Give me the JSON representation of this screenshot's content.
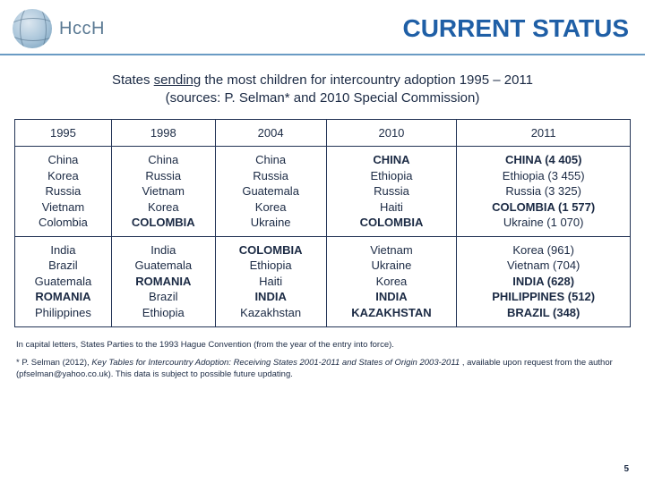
{
  "header": {
    "logo_text": "HccH",
    "title": "CURRENT STATUS",
    "title_color": "#1f5fa6",
    "rule_color": "#6a9bc4"
  },
  "subtitle": {
    "prefix": "States ",
    "underlined": "sending",
    "rest_line1": " the most children for intercountry adoption 1995 – 2011",
    "line2": "(sources: P. Selman* and 2010 Special Commission)"
  },
  "table": {
    "columns": [
      {
        "label": "1995",
        "class": "col-1995"
      },
      {
        "label": "1998",
        "class": "col-1998"
      },
      {
        "label": "2004",
        "class": "col-2004"
      },
      {
        "label": "2010",
        "class": "col-2010"
      },
      {
        "label": "2011",
        "class": "col-2011"
      }
    ],
    "rows": [
      [
        [
          {
            "t": "China"
          },
          {
            "t": "Korea"
          },
          {
            "t": "Russia"
          },
          {
            "t": "Vietnam"
          },
          {
            "t": "Colombia"
          }
        ],
        [
          {
            "t": "China"
          },
          {
            "t": "Russia"
          },
          {
            "t": "Vietnam"
          },
          {
            "t": "Korea"
          },
          {
            "t": "COLOMBIA",
            "b": true
          }
        ],
        [
          {
            "t": "China"
          },
          {
            "t": "Russia"
          },
          {
            "t": "Guatemala"
          },
          {
            "t": "Korea"
          },
          {
            "t": "Ukraine"
          }
        ],
        [
          {
            "t": "CHINA",
            "b": true
          },
          {
            "t": "Ethiopia"
          },
          {
            "t": "Russia"
          },
          {
            "t": "Haiti"
          },
          {
            "t": "COLOMBIA",
            "b": true
          }
        ],
        [
          {
            "t": "CHINA (4 405)",
            "b": true
          },
          {
            "t": "Ethiopia (3 455)"
          },
          {
            "t": "Russia (3 325)"
          },
          {
            "t": "COLOMBIA (1 577)",
            "b": true
          },
          {
            "t": "Ukraine (1 070)"
          }
        ]
      ],
      [
        [
          {
            "t": "India"
          },
          {
            "t": "Brazil"
          },
          {
            "t": "Guatemala"
          },
          {
            "t": "ROMANIA",
            "b": true
          },
          {
            "t": "Philippines"
          }
        ],
        [
          {
            "t": "India"
          },
          {
            "t": "Guatemala"
          },
          {
            "t": "ROMANIA",
            "b": true
          },
          {
            "t": "Brazil"
          },
          {
            "t": "Ethiopia"
          }
        ],
        [
          {
            "t": "COLOMBIA",
            "b": true
          },
          {
            "t": "Ethiopia"
          },
          {
            "t": "Haiti"
          },
          {
            "t": "INDIA",
            "b": true
          },
          {
            "t": "Kazakhstan"
          }
        ],
        [
          {
            "t": "Vietnam"
          },
          {
            "t": "Ukraine"
          },
          {
            "t": "Korea"
          },
          {
            "t": "INDIA",
            "b": true
          },
          {
            "t": "KAZAKHSTAN",
            "b": true
          }
        ],
        [
          {
            "t": "Korea (961)"
          },
          {
            "t": "Vietnam (704)"
          },
          {
            "t": "INDIA (628)",
            "b": true
          },
          {
            "t": "PHILIPPINES (512)",
            "b": true
          },
          {
            "t": "BRAZIL (348)",
            "b": true
          }
        ]
      ]
    ],
    "border_color": "#223355",
    "text_color": "#1b2a44",
    "cell_fontsize": 13
  },
  "footnotes": {
    "note1": "In capital letters, States Parties to the 1993 Hague Convention (from the year of the entry into force).",
    "note2_prefix": "* P. Selman (2012), ",
    "note2_italic": "Key Tables for Intercountry Adoption: Receiving States 2001-2011 and States of Origin 2003-2011",
    "note2_suffix": " , available upon request from the author (pfselman@yahoo.co.uk). This data is subject to possible future updating."
  },
  "page_number": "5"
}
